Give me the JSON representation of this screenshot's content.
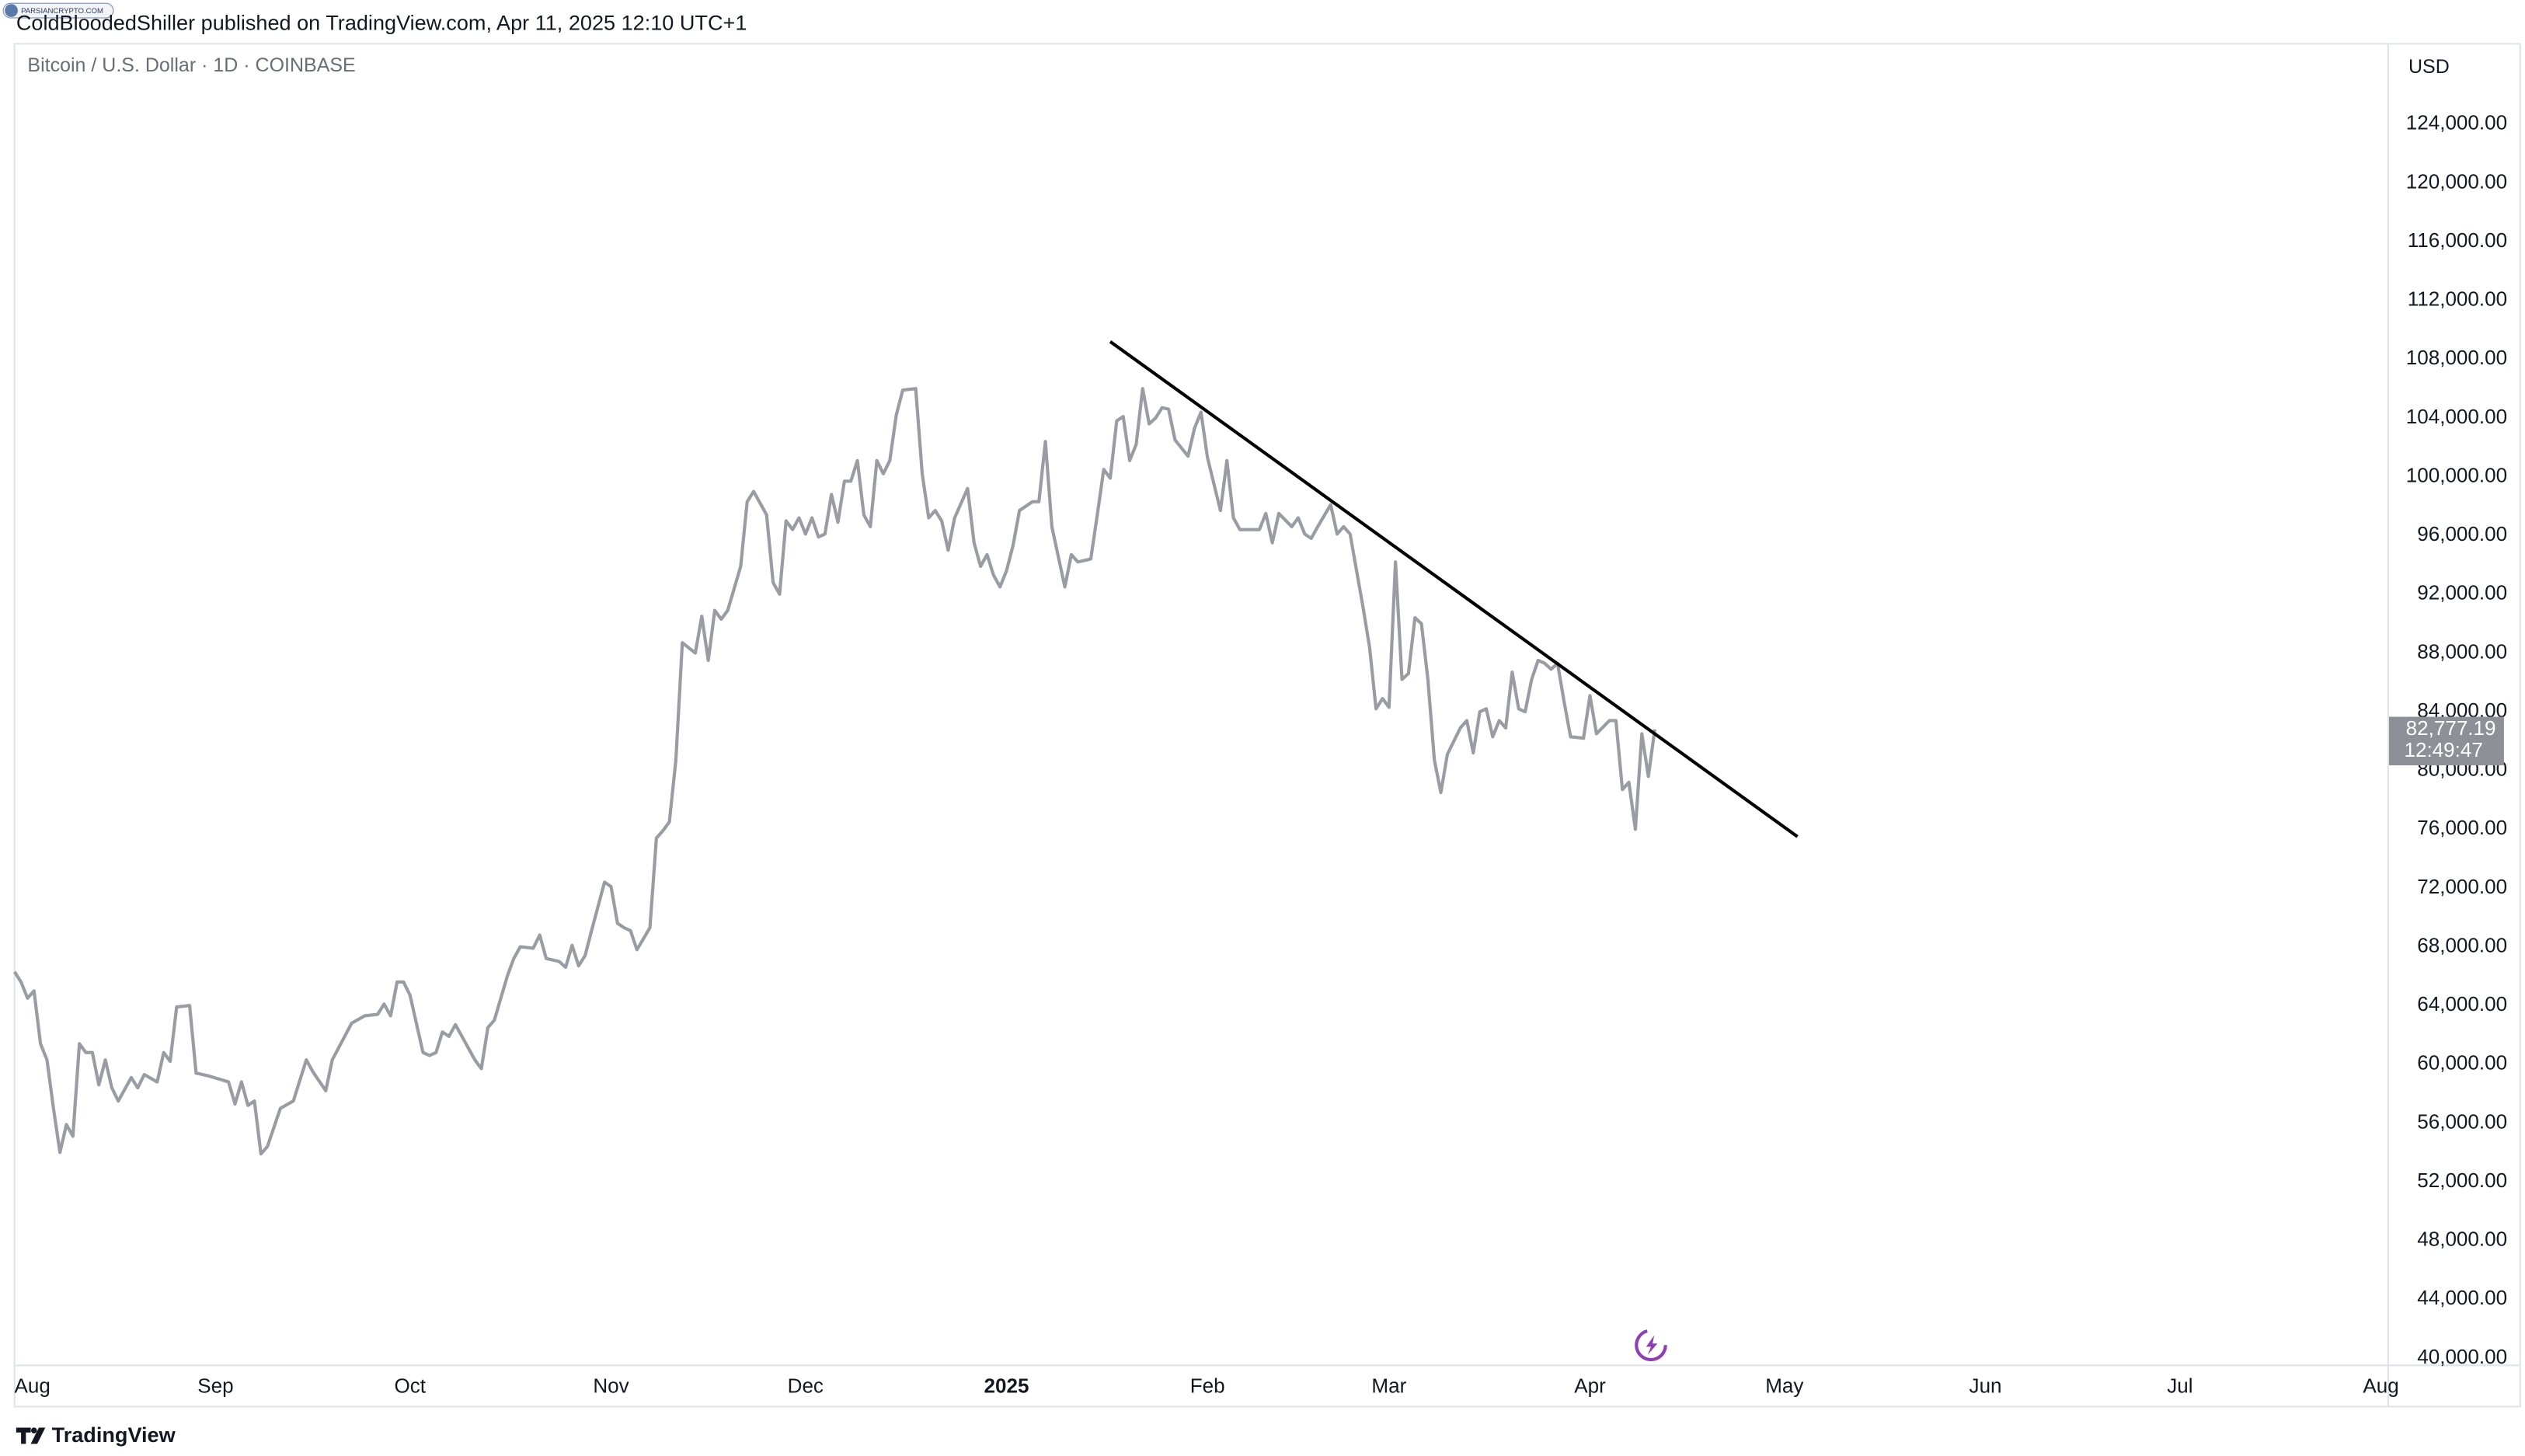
{
  "header": {
    "text": "ColdBloodedShiller published on TradingView.com, Apr 11, 2025 12:10 UTC+1"
  },
  "watermark": "PARSIANCRYPTO.COM",
  "footer": {
    "brand": "TradingView"
  },
  "chart_data": {
    "type": "line",
    "title": "Bitcoin / U.S. Dollar · 1D · COINBASE",
    "y_axis_label": "USD",
    "color": "#9a9ca3",
    "x": [
      0,
      1,
      2,
      3,
      4,
      5,
      6,
      7,
      8,
      9,
      10,
      11,
      12,
      13,
      14,
      15,
      16,
      18,
      19,
      20,
      22,
      23,
      24,
      25,
      27,
      28,
      30,
      33,
      34,
      35,
      36,
      37,
      38,
      39,
      41,
      43,
      45,
      46,
      48,
      49,
      52,
      54,
      56,
      57,
      58,
      59,
      60,
      61,
      63,
      64,
      65,
      66,
      67,
      68,
      69,
      71,
      72,
      73,
      74,
      76,
      77,
      78,
      80,
      81,
      82,
      84,
      85,
      86,
      87,
      88,
      89,
      91,
      92,
      93,
      94,
      95,
      96,
      98,
      99,
      100,
      101,
      102,
      103,
      105,
      106,
      107,
      108,
      109,
      110,
      112,
      113,
      114,
      116,
      117,
      118,
      119,
      120,
      121,
      122,
      123,
      124,
      125,
      126,
      127,
      128,
      129,
      130,
      131,
      132,
      133,
      134,
      135,
      136,
      137,
      139,
      140,
      141,
      142,
      143,
      144,
      145,
      147,
      148,
      149,
      150,
      151,
      152,
      153,
      154,
      155,
      157,
      158,
      159,
      160,
      162,
      163,
      164,
      166,
      167,
      168,
      169,
      170,
      171,
      172,
      173,
      174,
      175,
      176,
      177,
      178,
      179,
      181,
      182,
      183,
      184,
      186,
      187,
      188,
      189,
      192,
      193,
      194,
      195,
      197,
      198,
      199,
      200,
      201,
      203,
      204,
      205,
      206,
      208,
      209,
      210,
      211,
      212,
      213,
      214,
      215,
      216,
      217,
      218,
      219,
      220,
      221,
      223,
      224,
      225,
      226,
      227,
      228,
      229,
      230,
      231,
      232,
      233,
      234,
      235,
      236,
      237,
      238,
      239,
      240,
      242,
      243,
      244,
      246,
      247,
      248,
      249,
      250,
      251,
      252,
      253
    ],
    "values": [
      66300,
      65600,
      64500,
      65000,
      61400,
      60300,
      57000,
      54000,
      55900,
      55100,
      61400,
      60800,
      60800,
      58600,
      60300,
      58400,
      57500,
      59100,
      58400,
      59300,
      58800,
      60800,
      60200,
      63900,
      64000,
      59400,
      59200,
      58800,
      57300,
      58800,
      57200,
      57500,
      53900,
      54400,
      57000,
      57500,
      60300,
      59500,
      58200,
      60300,
      62800,
      63300,
      63400,
      64100,
      63300,
      65600,
      65600,
      64700,
      60800,
      60600,
      60800,
      62200,
      61900,
      62700,
      61900,
      60300,
      59700,
      62500,
      63000,
      66000,
      67200,
      68000,
      67900,
      68800,
      67200,
      67000,
      66600,
      68100,
      66700,
      67400,
      69100,
      72400,
      72100,
      69600,
      69300,
      69100,
      67800,
      69300,
      75400,
      75900,
      76500,
      80700,
      88700,
      88000,
      90500,
      87500,
      90900,
      90300,
      90900,
      93900,
      98300,
      99000,
      97400,
      92800,
      92000,
      97000,
      96400,
      97200,
      96100,
      97200,
      95900,
      96100,
      98800,
      96900,
      99700,
      99700,
      101100,
      97400,
      96600,
      101100,
      100200,
      101100,
      104200,
      105900,
      106000,
      100200,
      97200,
      97700,
      97000,
      95000,
      97200,
      99200,
      95500,
      93900,
      94700,
      93300,
      92500,
      93600,
      95300,
      97700,
      98300,
      98300,
      102400,
      96600,
      92500,
      94700,
      94200,
      94400,
      97400,
      100500,
      99900,
      103800,
      104100,
      101100,
      102200,
      106000,
      103600,
      104000,
      104700,
      104600,
      102500,
      101400,
      103300,
      104400,
      101300,
      97700,
      101100,
      97200,
      96400,
      96400,
      97500,
      95500,
      97500,
      96600,
      97200,
      96100,
      95800,
      96600,
      98100,
      96100,
      96600,
      96100,
      91100,
      88400,
      84200,
      84900,
      84300,
      94200,
      86200,
      86600,
      90400,
      90000,
      86200,
      80700,
      78500,
      81100,
      82900,
      83400,
      81200,
      84000,
      84200,
      82300,
      83400,
      82900,
      86700,
      84200,
      84000,
      86200,
      87500,
      87300,
      86900,
      87300,
      84700,
      82300,
      82200,
      85100,
      82500,
      83400,
      83400,
      78700,
      79200,
      76000,
      82500,
      79600,
      82800
    ],
    "trendline": {
      "x": [
        169,
        275
      ],
      "values": [
        109200,
        75500
      ],
      "color": "#000000"
    },
    "last_price": {
      "value": 82777.19,
      "label": "82,777.19"
    },
    "countdown": "12:49:47",
    "xlim": [
      0,
      366
    ],
    "xticks": [
      {
        "value": 0,
        "label": "Aug"
      },
      {
        "value": 31,
        "label": "Sep"
      },
      {
        "value": 61,
        "label": "Oct"
      },
      {
        "value": 92,
        "label": "Nov"
      },
      {
        "value": 122,
        "label": "Dec"
      },
      {
        "value": 153,
        "label": "2025"
      },
      {
        "value": 184,
        "label": "Feb"
      },
      {
        "value": 212,
        "label": "Mar"
      },
      {
        "value": 243,
        "label": "Apr"
      },
      {
        "value": 273,
        "label": "May"
      },
      {
        "value": 304,
        "label": "Jun"
      },
      {
        "value": 334,
        "label": "Jul"
      },
      {
        "value": 365,
        "label": "Aug"
      }
    ],
    "ylim": [
      39560,
      129480
    ],
    "yticks": [
      {
        "value": 40000,
        "label": "40,000.00"
      },
      {
        "value": 44000,
        "label": "44,000.00"
      },
      {
        "value": 48000,
        "label": "48,000.00"
      },
      {
        "value": 52000,
        "label": "52,000.00"
      },
      {
        "value": 56000,
        "label": "56,000.00"
      },
      {
        "value": 60000,
        "label": "60,000.00"
      },
      {
        "value": 64000,
        "label": "64,000.00"
      },
      {
        "value": 68000,
        "label": "68,000.00"
      },
      {
        "value": 72000,
        "label": "72,000.00"
      },
      {
        "value": 76000,
        "label": "76,000.00"
      },
      {
        "value": 80000,
        "label": "80,000.00"
      },
      {
        "value": 84000,
        "label": "84,000.00"
      },
      {
        "value": 88000,
        "label": "88,000.00"
      },
      {
        "value": 92000,
        "label": "92,000.00"
      },
      {
        "value": 96000,
        "label": "96,000.00"
      },
      {
        "value": 100000,
        "label": "100,000.00"
      },
      {
        "value": 104000,
        "label": "104,000.00"
      },
      {
        "value": 108000,
        "label": "108,000.00"
      },
      {
        "value": 112000,
        "label": "112,000.00"
      },
      {
        "value": 116000,
        "label": "116,000.00"
      },
      {
        "value": 120000,
        "label": "120,000.00"
      },
      {
        "value": 124000,
        "label": "124,000.00"
      }
    ],
    "grid": false
  }
}
